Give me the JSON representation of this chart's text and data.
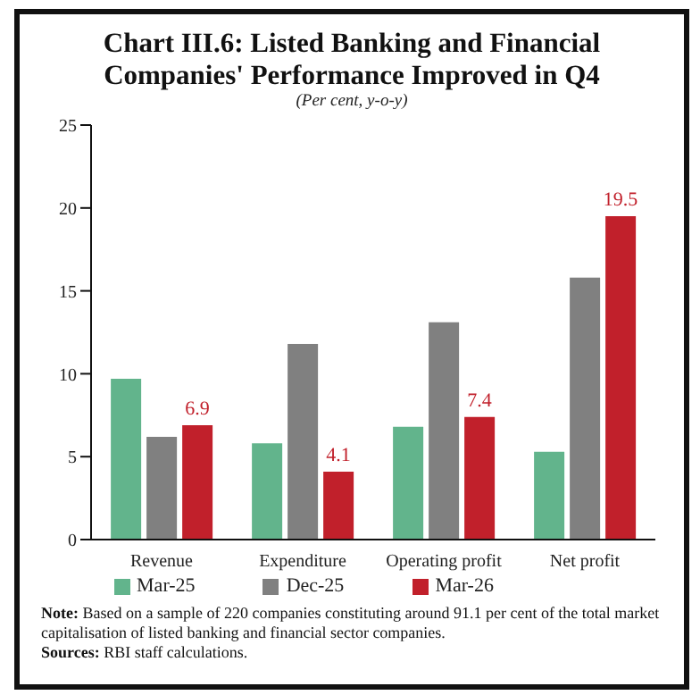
{
  "chart_data": {
    "type": "bar",
    "title": "Chart III.6: Listed Banking and Financial Companies' Performance Improved in Q4",
    "subtitle": "(Per cent, y-o-y)",
    "categories": [
      "Revenue",
      "Expenditure",
      "Operating profit",
      "Net profit"
    ],
    "series": [
      {
        "name": "Mar-25",
        "color": "#62b48c",
        "values": [
          9.7,
          5.8,
          6.8,
          5.3
        ]
      },
      {
        "name": "Dec-25",
        "color": "#808080",
        "values": [
          6.2,
          11.8,
          13.1,
          15.8
        ]
      },
      {
        "name": "Mar-26",
        "color": "#c1202b",
        "values": [
          6.9,
          4.1,
          7.4,
          19.5
        ],
        "value_labels": [
          "6.9",
          "4.1",
          "7.4",
          "19.5"
        ]
      }
    ],
    "ylim": [
      0,
      25
    ],
    "yticks": [
      0,
      5,
      10,
      15,
      20,
      25
    ],
    "grid": false,
    "legend": "bottom",
    "annotations": [
      "Note: Based on a sample of 220 companies constituting around 91.1 per cent of the total market capitalisation of listed banking and financial sector companies.",
      "Sources: RBI staff calculations."
    ]
  }
}
